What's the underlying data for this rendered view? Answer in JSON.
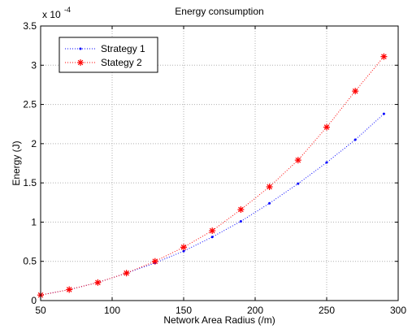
{
  "chart_data": {
    "type": "line",
    "title": "Energy consumption",
    "xlabel": "Network Area Radius (/m)",
    "ylabel": "Energy (J)",
    "y_multiplier_label": "x 10",
    "y_multiplier_exponent": "-4",
    "xlim": [
      50,
      300
    ],
    "ylim": [
      0,
      3.5
    ],
    "x_ticks": [
      50,
      100,
      150,
      200,
      250,
      300
    ],
    "y_ticks": [
      0,
      0.5,
      1,
      1.5,
      2,
      2.5,
      3,
      3.5
    ],
    "grid": true,
    "legend_position": "top-left",
    "x": [
      50,
      70,
      90,
      110,
      130,
      150,
      170,
      190,
      210,
      230,
      250,
      270,
      290
    ],
    "series": [
      {
        "name": "Strategy 1",
        "color": "#0000ff",
        "marker": "point",
        "linestyle": "dotted",
        "values": [
          0.07,
          0.14,
          0.23,
          0.35,
          0.48,
          0.63,
          0.81,
          1.01,
          1.24,
          1.49,
          1.76,
          2.05,
          2.38
        ]
      },
      {
        "name": "Stategy 2",
        "color": "#ff0000",
        "marker": "asterisk",
        "linestyle": "dotted",
        "values": [
          0.07,
          0.14,
          0.23,
          0.35,
          0.5,
          0.68,
          0.89,
          1.16,
          1.45,
          1.79,
          2.21,
          2.67,
          3.11
        ]
      }
    ]
  }
}
